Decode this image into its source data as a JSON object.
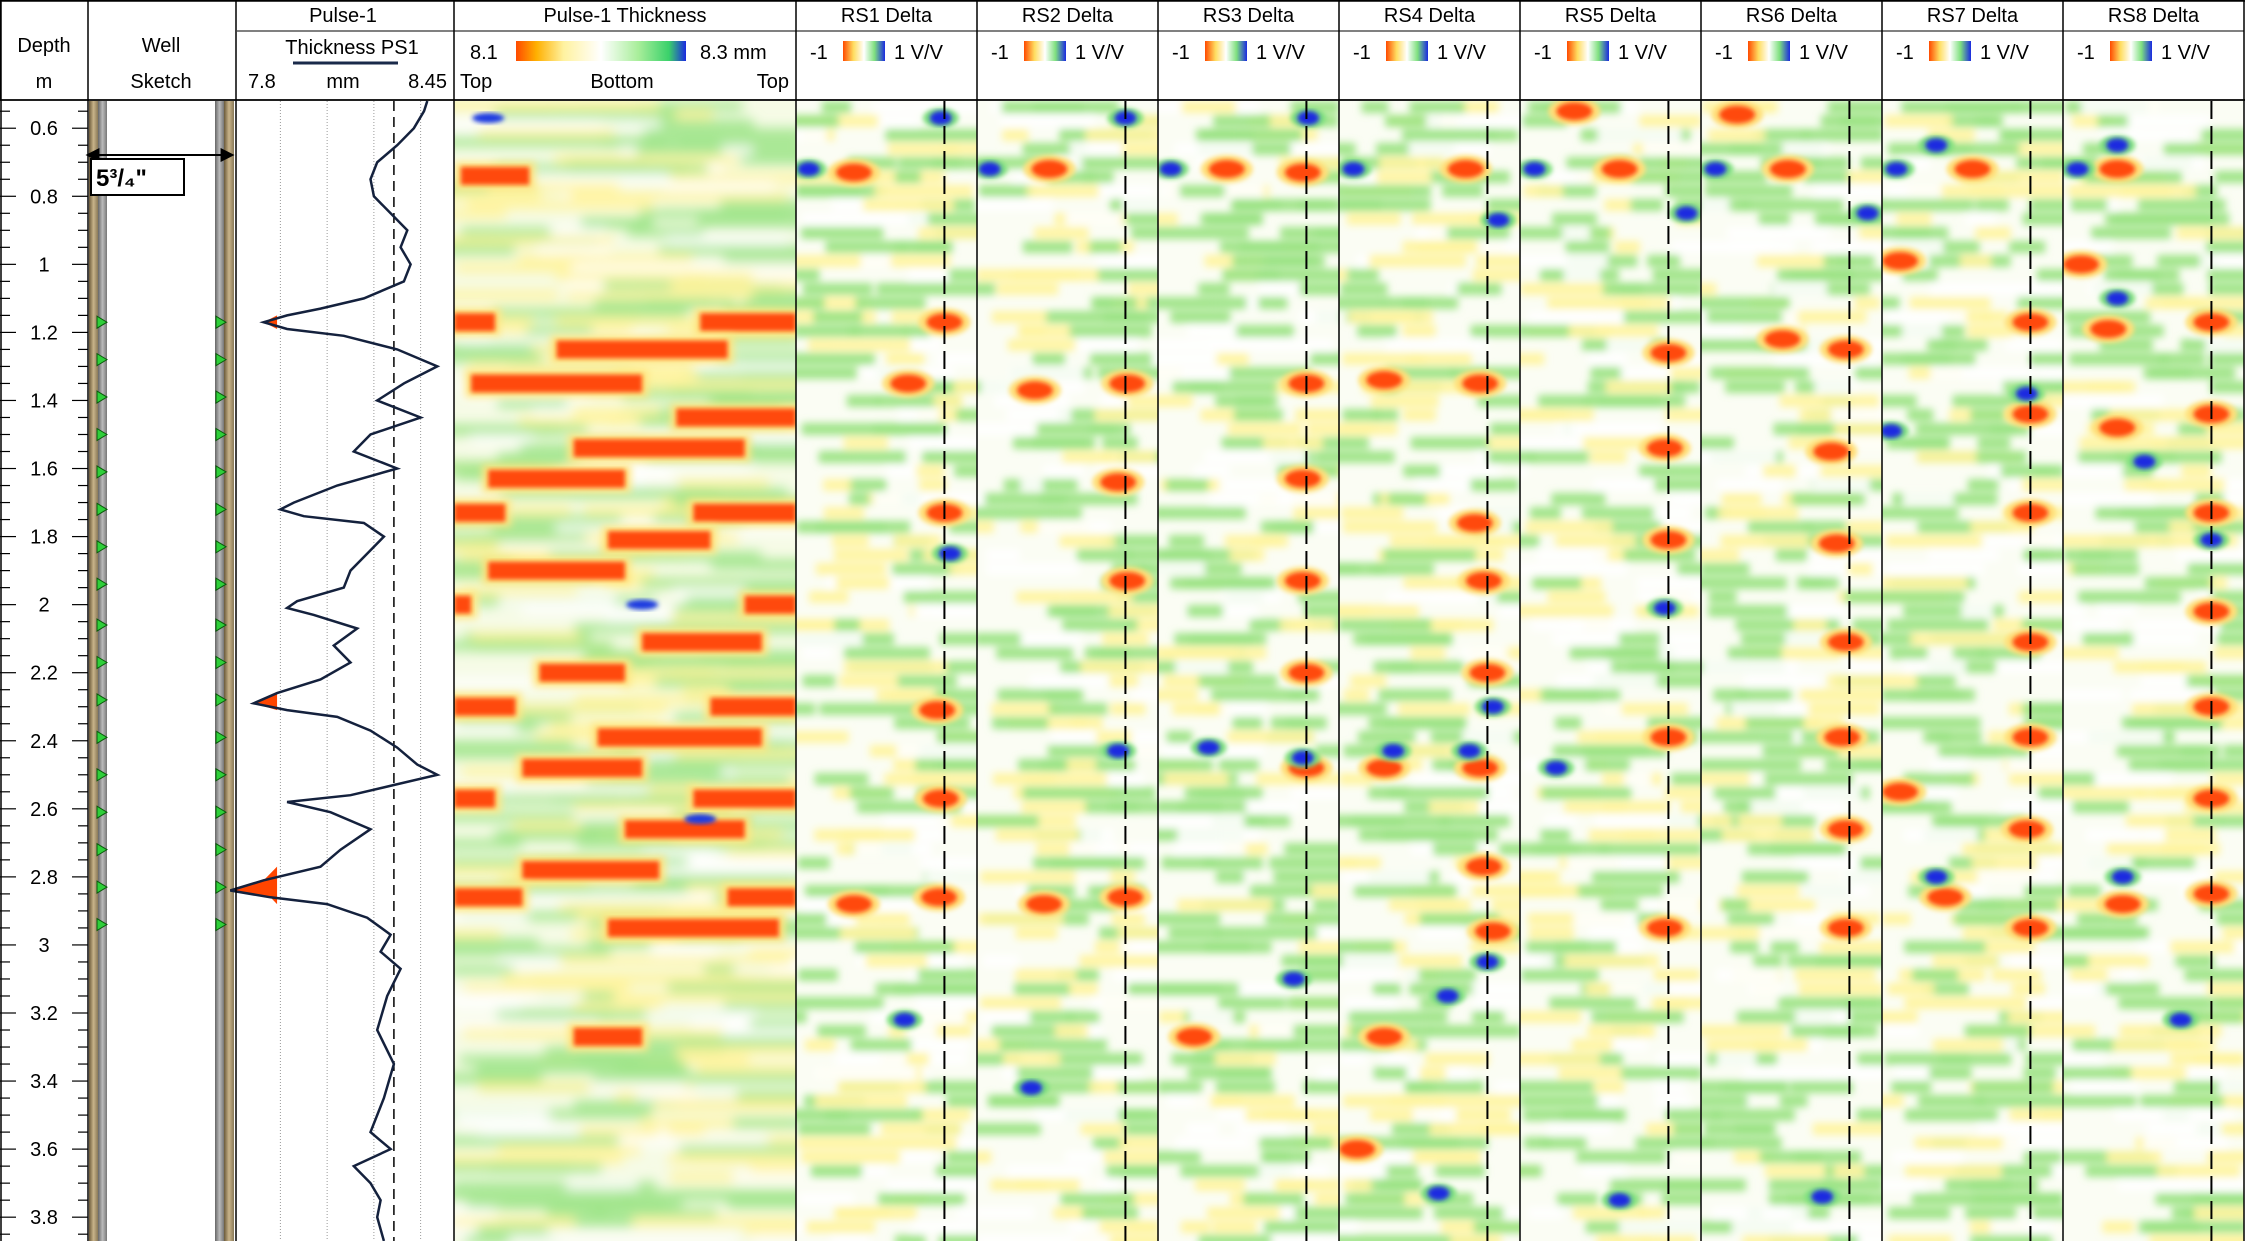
{
  "chart_data": {
    "type": "well-log",
    "depth_track": {
      "title": "Depth",
      "unit": "m",
      "ticks": [
        "0.6",
        "0.8",
        "1",
        "1.2",
        "1.4",
        "1.6",
        "1.8",
        "2",
        "2.2",
        "2.4",
        "2.6",
        "2.8",
        "3",
        "3.2",
        "3.4",
        "3.6",
        "3.8"
      ],
      "range": [
        0.52,
        3.87
      ]
    },
    "well_sketch": {
      "title": "Well",
      "subtitle": "Sketch",
      "casing_label": "5³/₄\"",
      "marker_depths": [
        1.17,
        1.28,
        1.39,
        1.5,
        1.61,
        1.72,
        1.83,
        1.94,
        2.06,
        2.17,
        2.28,
        2.39,
        2.5,
        2.61,
        2.72,
        2.83,
        2.94
      ]
    },
    "pulse_track": {
      "title": "Pulse-1",
      "curve_name": "Thickness PS1",
      "unit": "mm",
      "min_label": "7.8",
      "max_label": "8.45",
      "xlim": [
        7.8,
        8.45
      ],
      "dashed_line_value": 8.27,
      "dotted_line_values": [
        7.93,
        8.07,
        8.21,
        8.35
      ],
      "fill_threshold": 7.92,
      "depth": [
        0.52,
        0.55,
        0.6,
        0.65,
        0.7,
        0.75,
        0.8,
        0.85,
        0.9,
        0.95,
        1.0,
        1.05,
        1.1,
        1.13,
        1.15,
        1.17,
        1.19,
        1.21,
        1.25,
        1.3,
        1.35,
        1.4,
        1.45,
        1.5,
        1.55,
        1.6,
        1.65,
        1.7,
        1.72,
        1.74,
        1.76,
        1.8,
        1.85,
        1.9,
        1.95,
        1.99,
        2.01,
        2.03,
        2.07,
        2.12,
        2.17,
        2.22,
        2.26,
        2.29,
        2.31,
        2.33,
        2.37,
        2.42,
        2.47,
        2.5,
        2.53,
        2.56,
        2.58,
        2.61,
        2.66,
        2.72,
        2.77,
        2.81,
        2.84,
        2.86,
        2.88,
        2.92,
        2.97,
        3.02,
        3.07,
        3.15,
        3.25,
        3.35,
        3.45,
        3.55,
        3.6,
        3.65,
        3.7,
        3.75,
        3.8,
        3.87
      ],
      "values": [
        8.37,
        8.36,
        8.33,
        8.28,
        8.22,
        8.2,
        8.21,
        8.26,
        8.31,
        8.29,
        8.32,
        8.3,
        8.18,
        8.05,
        7.95,
        7.88,
        7.95,
        8.12,
        8.28,
        8.4,
        8.3,
        8.22,
        8.35,
        8.2,
        8.15,
        8.28,
        8.1,
        7.97,
        7.93,
        8.0,
        8.18,
        8.24,
        8.19,
        8.14,
        8.12,
        7.98,
        7.95,
        8.03,
        8.16,
        8.09,
        8.14,
        8.05,
        7.92,
        7.85,
        7.95,
        8.1,
        8.2,
        8.28,
        8.34,
        8.4,
        8.27,
        8.14,
        7.95,
        8.08,
        8.2,
        8.11,
        8.05,
        7.88,
        7.78,
        7.9,
        8.07,
        8.19,
        8.26,
        8.23,
        8.29,
        8.25,
        8.22,
        8.27,
        8.24,
        8.2,
        8.26,
        8.15,
        8.2,
        8.23,
        8.22,
        8.24
      ]
    },
    "thickness_image": {
      "title": "Pulse-1 Thickness",
      "scale_min": "8.1",
      "scale_max": "8.3 mm",
      "labels": [
        "Top",
        "Bottom",
        "Top"
      ],
      "hot_bands": [
        {
          "depth": 0.74,
          "from": 0.02,
          "to": 0.22
        },
        {
          "depth": 1.17,
          "from": 0.0,
          "to": 0.12
        },
        {
          "depth": 1.17,
          "from": 0.72,
          "to": 1.0
        },
        {
          "depth": 1.25,
          "from": 0.3,
          "to": 0.8
        },
        {
          "depth": 1.35,
          "from": 0.05,
          "to": 0.55
        },
        {
          "depth": 1.45,
          "from": 0.65,
          "to": 1.0
        },
        {
          "depth": 1.54,
          "from": 0.35,
          "to": 0.85
        },
        {
          "depth": 1.63,
          "from": 0.1,
          "to": 0.5
        },
        {
          "depth": 1.73,
          "from": 0.0,
          "to": 0.15
        },
        {
          "depth": 1.73,
          "from": 0.7,
          "to": 1.0
        },
        {
          "depth": 1.81,
          "from": 0.45,
          "to": 0.75
        },
        {
          "depth": 1.9,
          "from": 0.1,
          "to": 0.5
        },
        {
          "depth": 2.0,
          "from": 0.0,
          "to": 0.05
        },
        {
          "depth": 2.0,
          "from": 0.85,
          "to": 1.0
        },
        {
          "depth": 2.11,
          "from": 0.55,
          "to": 0.9
        },
        {
          "depth": 2.2,
          "from": 0.25,
          "to": 0.5
        },
        {
          "depth": 2.3,
          "from": 0.0,
          "to": 0.18
        },
        {
          "depth": 2.3,
          "from": 0.75,
          "to": 1.0
        },
        {
          "depth": 2.39,
          "from": 0.42,
          "to": 0.9
        },
        {
          "depth": 2.48,
          "from": 0.2,
          "to": 0.55
        },
        {
          "depth": 2.57,
          "from": 0.0,
          "to": 0.12
        },
        {
          "depth": 2.57,
          "from": 0.7,
          "to": 1.0
        },
        {
          "depth": 2.66,
          "from": 0.5,
          "to": 0.85
        },
        {
          "depth": 2.78,
          "from": 0.2,
          "to": 0.6
        },
        {
          "depth": 2.86,
          "from": 0.0,
          "to": 0.2
        },
        {
          "depth": 2.86,
          "from": 0.8,
          "to": 1.0
        },
        {
          "depth": 2.95,
          "from": 0.45,
          "to": 0.95
        },
        {
          "depth": 3.27,
          "from": 0.35,
          "to": 0.55
        }
      ]
    },
    "rs_tracks": [
      {
        "title": "RS1 Delta",
        "scale_min": "-1",
        "scale_max": "1 V/V",
        "dashed_line": 0.82,
        "hot": [
          [
            0.73,
            0.32
          ],
          [
            1.17,
            0.82
          ],
          [
            1.35,
            0.62
          ],
          [
            1.73,
            0.82
          ],
          [
            2.31,
            0.78
          ],
          [
            2.57,
            0.8
          ],
          [
            2.86,
            0.79
          ],
          [
            2.88,
            0.32
          ]
        ],
        "blue": [
          [
            0.72,
            0.07
          ],
          [
            3.22,
            0.6
          ],
          [
            0.57,
            0.8
          ],
          [
            1.85,
            0.85
          ]
        ]
      },
      {
        "title": "RS2 Delta",
        "scale_min": "-1",
        "scale_max": "1 V/V",
        "dashed_line": 0.82,
        "hot": [
          [
            0.72,
            0.4
          ],
          [
            1.35,
            0.83
          ],
          [
            1.37,
            0.32
          ],
          [
            1.64,
            0.78
          ],
          [
            1.93,
            0.83
          ],
          [
            2.88,
            0.37
          ],
          [
            2.86,
            0.82
          ]
        ],
        "blue": [
          [
            0.72,
            0.07
          ],
          [
            0.57,
            0.82
          ],
          [
            2.43,
            0.78
          ],
          [
            3.42,
            0.3
          ]
        ]
      },
      {
        "title": "RS3 Delta",
        "scale_min": "-1",
        "scale_max": "1 V/V",
        "dashed_line": 0.82,
        "hot": [
          [
            0.72,
            0.38
          ],
          [
            0.73,
            0.8
          ],
          [
            1.35,
            0.82
          ],
          [
            1.63,
            0.8
          ],
          [
            1.93,
            0.8
          ],
          [
            2.2,
            0.82
          ],
          [
            2.48,
            0.82
          ],
          [
            3.27,
            0.2
          ]
        ],
        "blue": [
          [
            0.72,
            0.07
          ],
          [
            0.57,
            0.83
          ],
          [
            2.42,
            0.28
          ],
          [
            3.1,
            0.75
          ],
          [
            2.45,
            0.8
          ]
        ]
      },
      {
        "title": "RS4 Delta",
        "scale_min": "-1",
        "scale_max": "1 V/V",
        "dashed_line": 0.82,
        "hot": [
          [
            0.72,
            0.7
          ],
          [
            1.35,
            0.78
          ],
          [
            1.34,
            0.25
          ],
          [
            1.76,
            0.75
          ],
          [
            1.93,
            0.8
          ],
          [
            2.2,
            0.82
          ],
          [
            2.48,
            0.78
          ],
          [
            2.48,
            0.25
          ],
          [
            2.77,
            0.8
          ],
          [
            2.96,
            0.85
          ],
          [
            3.27,
            0.25
          ],
          [
            3.6,
            0.1
          ]
        ],
        "blue": [
          [
            0.72,
            0.08
          ],
          [
            0.87,
            0.88
          ],
          [
            2.43,
            0.3
          ],
          [
            2.43,
            0.72
          ],
          [
            2.3,
            0.85
          ],
          [
            3.05,
            0.82
          ],
          [
            3.15,
            0.6
          ],
          [
            3.73,
            0.55
          ]
        ]
      },
      {
        "title": "RS5 Delta",
        "scale_min": "-1",
        "scale_max": "1 V/V",
        "dashed_line": 0.82,
        "hot": [
          [
            0.55,
            0.3
          ],
          [
            0.72,
            0.55
          ],
          [
            1.26,
            0.82
          ],
          [
            1.54,
            0.8
          ],
          [
            1.81,
            0.82
          ],
          [
            2.39,
            0.82
          ],
          [
            2.95,
            0.8
          ]
        ],
        "blue": [
          [
            0.72,
            0.08
          ],
          [
            0.85,
            0.92
          ],
          [
            2.01,
            0.8
          ],
          [
            3.75,
            0.55
          ],
          [
            2.48,
            0.2
          ]
        ]
      },
      {
        "title": "RS6 Delta",
        "scale_min": "-1",
        "scale_max": "1 V/V",
        "dashed_line": 0.82,
        "hot": [
          [
            0.56,
            0.2
          ],
          [
            0.72,
            0.48
          ],
          [
            1.25,
            0.8
          ],
          [
            1.55,
            0.72
          ],
          [
            1.82,
            0.75
          ],
          [
            2.11,
            0.8
          ],
          [
            2.39,
            0.78
          ],
          [
            2.66,
            0.8
          ],
          [
            2.95,
            0.8
          ],
          [
            1.22,
            0.45
          ]
        ],
        "blue": [
          [
            0.72,
            0.08
          ],
          [
            0.85,
            0.92
          ],
          [
            3.74,
            0.67
          ]
        ]
      },
      {
        "title": "RS7 Delta",
        "scale_min": "-1",
        "scale_max": "1 V/V",
        "dashed_line": 0.82,
        "hot": [
          [
            0.72,
            0.5
          ],
          [
            0.99,
            0.1
          ],
          [
            1.17,
            0.82
          ],
          [
            1.44,
            0.82
          ],
          [
            1.73,
            0.82
          ],
          [
            2.11,
            0.82
          ],
          [
            2.39,
            0.82
          ],
          [
            2.66,
            0.8
          ],
          [
            2.95,
            0.82
          ],
          [
            2.86,
            0.35
          ],
          [
            2.55,
            0.1
          ]
        ],
        "blue": [
          [
            0.72,
            0.08
          ],
          [
            0.65,
            0.3
          ],
          [
            2.8,
            0.3
          ],
          [
            1.49,
            0.05
          ],
          [
            1.38,
            0.8
          ]
        ]
      },
      {
        "title": "RS8 Delta",
        "scale_min": "-1",
        "scale_max": "1 V/V",
        "dashed_line": 0.82,
        "hot": [
          [
            0.72,
            0.3
          ],
          [
            1.0,
            0.1
          ],
          [
            1.17,
            0.82
          ],
          [
            1.19,
            0.25
          ],
          [
            1.44,
            0.82
          ],
          [
            1.48,
            0.3
          ],
          [
            1.73,
            0.82
          ],
          [
            2.02,
            0.82
          ],
          [
            2.3,
            0.82
          ],
          [
            2.57,
            0.82
          ],
          [
            2.85,
            0.82
          ],
          [
            2.88,
            0.33
          ]
        ],
        "blue": [
          [
            0.72,
            0.08
          ],
          [
            0.65,
            0.3
          ],
          [
            2.8,
            0.33
          ],
          [
            1.81,
            0.82
          ],
          [
            3.22,
            0.65
          ],
          [
            1.58,
            0.45
          ],
          [
            1.1,
            0.3
          ]
        ]
      }
    ]
  }
}
